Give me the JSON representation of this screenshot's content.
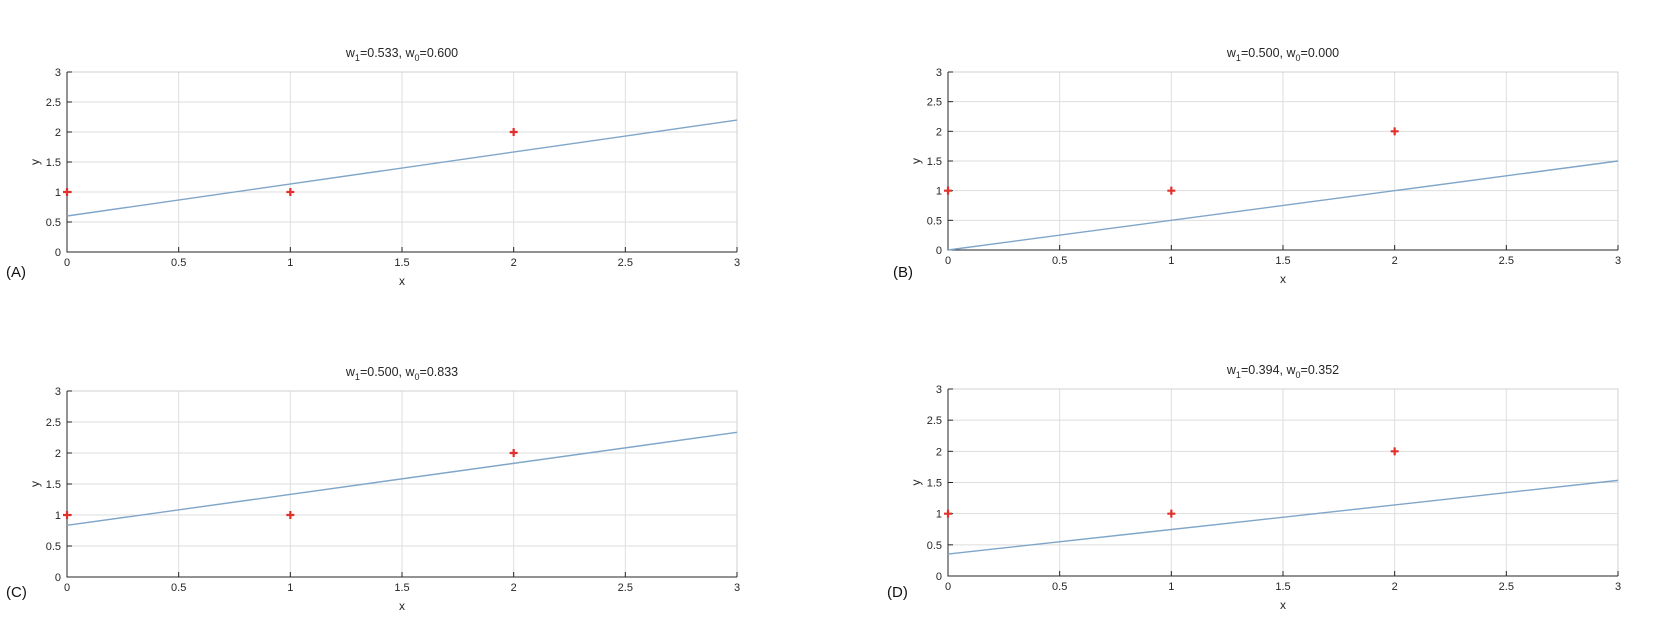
{
  "chart_data": [
    {
      "type": "scatter+line",
      "panel_label": "(A)",
      "title": {
        "w1_label": "w",
        "w1_sub": "1",
        "w1_value": "=0.533, ",
        "w0_label": "w",
        "w0_sub": "0",
        "w0_value": "=0.600"
      },
      "xlabel": "x",
      "ylabel": "y",
      "xlim": [
        0,
        3
      ],
      "ylim": [
        0,
        3
      ],
      "xticks": [
        "0",
        "0.5",
        "1",
        "1.5",
        "2",
        "2.5",
        "3"
      ],
      "yticks": [
        "0",
        "0.5",
        "1",
        "1.5",
        "2",
        "2.5",
        "3"
      ],
      "grid": true,
      "points": {
        "x": [
          0,
          1,
          2
        ],
        "y": [
          1,
          1,
          2
        ]
      },
      "line": {
        "slope": 0.533,
        "intercept": 0.6
      }
    },
    {
      "type": "scatter+line",
      "panel_label": "(B)",
      "title": {
        "w1_label": "w",
        "w1_sub": "1",
        "w1_value": "=0.500, ",
        "w0_label": "w",
        "w0_sub": "0",
        "w0_value": "=0.000"
      },
      "xlabel": "x",
      "ylabel": "y",
      "xlim": [
        0,
        3
      ],
      "ylim": [
        0,
        3
      ],
      "xticks": [
        "0",
        "0.5",
        "1",
        "1.5",
        "2",
        "2.5",
        "3"
      ],
      "yticks": [
        "0",
        "0.5",
        "1",
        "1.5",
        "2",
        "2.5",
        "3"
      ],
      "grid": true,
      "points": {
        "x": [
          0,
          1,
          2
        ],
        "y": [
          1,
          1,
          2
        ]
      },
      "line": {
        "slope": 0.5,
        "intercept": 0.0
      }
    },
    {
      "type": "scatter+line",
      "panel_label": "(C)",
      "title": {
        "w1_label": "w",
        "w1_sub": "1",
        "w1_value": "=0.500, ",
        "w0_label": "w",
        "w0_sub": "0",
        "w0_value": "=0.833"
      },
      "xlabel": "x",
      "ylabel": "y",
      "xlim": [
        0,
        3
      ],
      "ylim": [
        0,
        3
      ],
      "xticks": [
        "0",
        "0.5",
        "1",
        "1.5",
        "2",
        "2.5",
        "3"
      ],
      "yticks": [
        "0",
        "0.5",
        "1",
        "1.5",
        "2",
        "2.5",
        "3"
      ],
      "grid": true,
      "points": {
        "x": [
          0,
          1,
          2
        ],
        "y": [
          1,
          1,
          2
        ]
      },
      "line": {
        "slope": 0.5,
        "intercept": 0.833
      }
    },
    {
      "type": "scatter+line",
      "panel_label": "(D)",
      "title": {
        "w1_label": "w",
        "w1_sub": "1",
        "w1_value": "=0.394, ",
        "w0_label": "w",
        "w0_sub": "0",
        "w0_value": "=0.352"
      },
      "xlabel": "x",
      "ylabel": "y",
      "xlim": [
        0,
        3
      ],
      "ylim": [
        0,
        3
      ],
      "xticks": [
        "0",
        "0.5",
        "1",
        "1.5",
        "2",
        "2.5",
        "3"
      ],
      "yticks": [
        "0",
        "0.5",
        "1",
        "1.5",
        "2",
        "2.5",
        "3"
      ],
      "grid": true,
      "points": {
        "x": [
          0,
          1,
          2
        ],
        "y": [
          1,
          1,
          2
        ]
      },
      "line": {
        "slope": 0.394,
        "intercept": 0.352
      }
    }
  ],
  "colors": {
    "line": "#7fa6c8",
    "marker": "#e0312d",
    "axis": "#262626",
    "grid": "#dedede"
  }
}
